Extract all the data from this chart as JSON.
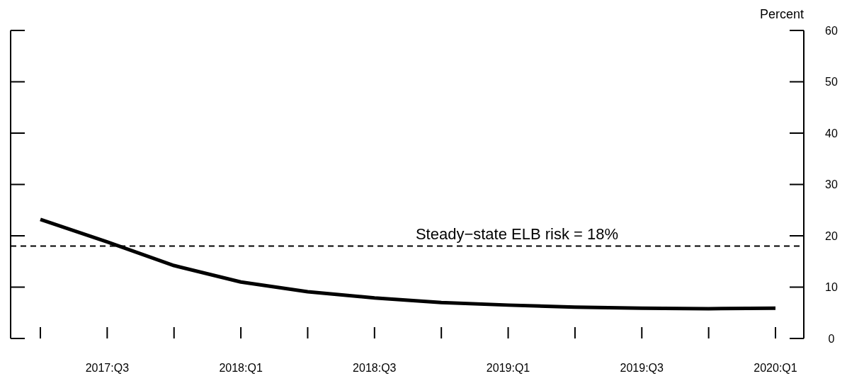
{
  "chart_data": {
    "type": "line",
    "ylabel": "Percent",
    "categories": [
      null,
      "2017:Q3",
      null,
      "2018:Q1",
      null,
      "2018:Q3",
      null,
      "2019:Q1",
      null,
      "2019:Q3",
      null,
      "2020:Q1"
    ],
    "series": [
      {
        "color": "#000000",
        "values": [
          23.2,
          18.8,
          14.2,
          11.0,
          9.1,
          7.9,
          7.0,
          6.5,
          6.1,
          5.9,
          5.8,
          5.9
        ]
      }
    ],
    "ylim": [
      0,
      60
    ],
    "yticks": [
      0,
      10,
      20,
      30,
      40,
      50,
      60
    ],
    "grid": false,
    "line_style": "solid",
    "ref_lines": [
      {
        "axis": "y",
        "value": 18,
        "label": "Steady−state ELB risk = 18%",
        "color": "#000000",
        "line_style": "dashed"
      }
    ]
  }
}
